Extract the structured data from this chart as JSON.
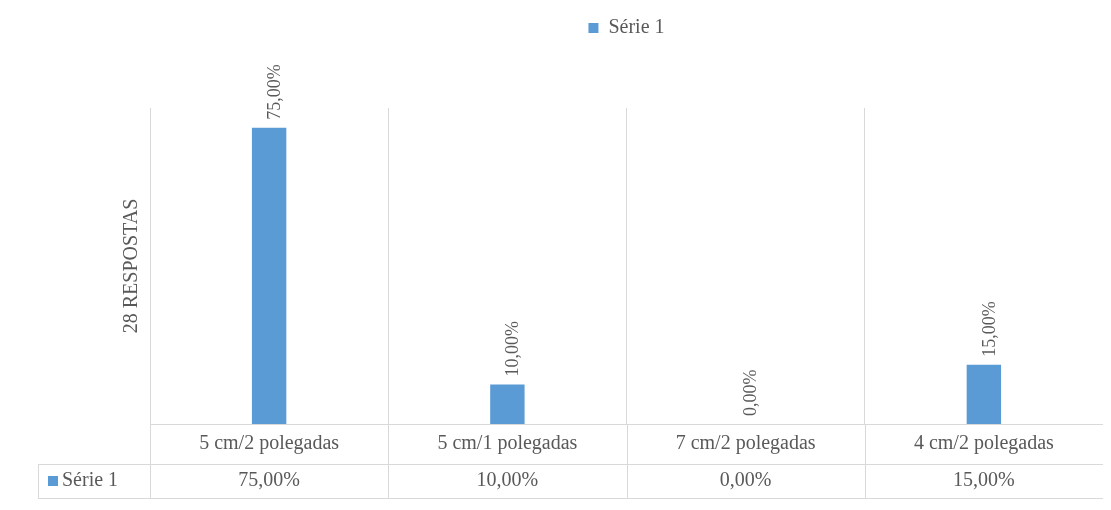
{
  "chart_data": {
    "type": "bar",
    "ylabel": "28 RESPOSTAS",
    "categories": [
      "5 cm/2 polegadas",
      "5 cm/1 polegadas",
      "7 cm/2 polegadas",
      "4 cm/2 polegadas"
    ],
    "series": [
      {
        "name": "Série 1",
        "color": "#5b9bd5",
        "values": [
          75,
          10,
          0,
          15
        ],
        "value_labels": [
          "75,00%",
          "10,00%",
          "0,00%",
          "15,00%"
        ]
      }
    ],
    "grid": "x",
    "legend": "top"
  }
}
